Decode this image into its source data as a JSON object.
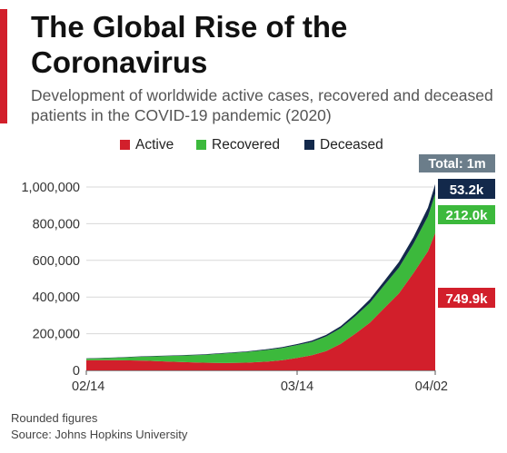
{
  "header": {
    "title": "The Global Rise of the Coronavirus",
    "subtitle": "Development of worldwide active cases, recovered and deceased patients in the COVID-19 pandemic (2020)"
  },
  "colors": {
    "accent": "#d21f2b",
    "active": "#d21f2b",
    "recovered": "#3cb93c",
    "deceased": "#13294b",
    "total_badge": "#6b7d8a"
  },
  "chart_data": {
    "type": "area",
    "stacked": true,
    "x": [
      "02/14",
      "02/18",
      "02/22",
      "02/26",
      "03/01",
      "03/04",
      "03/07",
      "03/10",
      "03/12",
      "03/14",
      "03/16",
      "03/18",
      "03/20",
      "03/22",
      "03/24",
      "03/26",
      "03/28",
      "03/30",
      "04/01",
      "04/02"
    ],
    "xticks": [
      "02/14",
      "03/14",
      "04/02"
    ],
    "series": [
      {
        "name": "Active",
        "color": "#d21f2b",
        "values": [
          56000,
          56000,
          53000,
          47000,
          42000,
          40000,
          42000,
          48000,
          56000,
          68000,
          82000,
          105000,
          145000,
          200000,
          260000,
          340000,
          420000,
          530000,
          650000,
          749900
        ]
      },
      {
        "name": "Recovered",
        "color": "#3cb93c",
        "values": [
          8000,
          13000,
          22000,
          32000,
          42000,
          52000,
          58000,
          64000,
          67000,
          70000,
          73000,
          80000,
          85000,
          95000,
          108000,
          125000,
          140000,
          160000,
          190000,
          212000
        ]
      },
      {
        "name": "Deceased",
        "color": "#13294b",
        "values": [
          1500,
          1900,
          2400,
          2800,
          3000,
          3200,
          3500,
          4200,
          4900,
          5800,
          7000,
          8800,
          11000,
          14500,
          19000,
          23000,
          31000,
          36000,
          47000,
          53200
        ]
      }
    ],
    "ylim": [
      0,
      1000000
    ],
    "yticks": [
      0,
      200000,
      400000,
      600000,
      800000,
      1000000
    ],
    "ytick_labels": [
      "0",
      "200,000",
      "400,000",
      "600,000",
      "800,000",
      "1,000,000"
    ],
    "legend": {
      "placement": "top-center",
      "entries": [
        "Active",
        "Recovered",
        "Deceased"
      ]
    },
    "end_labels": {
      "deceased": "53.2k",
      "recovered": "212.0k",
      "active": "749.9k"
    },
    "total_label": "Total: 1m",
    "grid": true
  },
  "footer": {
    "note": "Rounded figures",
    "source": "Source: Johns Hopkins University"
  }
}
